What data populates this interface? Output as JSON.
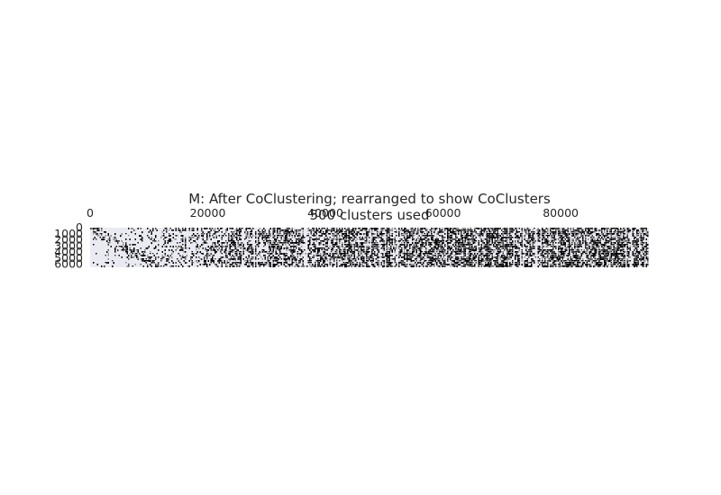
{
  "chart_data": {
    "type": "heatmap",
    "title": "M: After CoClustering; rearranged to show CoClusters",
    "subtitle": "500 clusters used",
    "xlabel": "",
    "ylabel": "",
    "xlim": [
      0,
      95000
    ],
    "ylim": [
      0,
      6500
    ],
    "x_ticks": [
      "0",
      "20000",
      "40000",
      "60000",
      "80000"
    ],
    "x_tick_values": [
      0,
      20000,
      40000,
      60000,
      80000
    ],
    "y_ticks": [
      "0",
      "1000",
      "2000",
      "3000",
      "4000",
      "5000",
      "6000"
    ],
    "y_tick_values": [
      0,
      1000,
      2000,
      3000,
      4000,
      5000,
      6000
    ],
    "x_axis_position": "top",
    "grid": false,
    "colormap": "gray_r",
    "colors": {
      "background": "#eaeaf2",
      "cell": "#000000",
      "text": "#262626"
    },
    "density_profile": {
      "description_units": "fraction of filled cells along x (data units)",
      "x": [
        0,
        3000,
        7000,
        12000,
        18000,
        25000,
        35000,
        45000,
        55000,
        65000,
        75000,
        85000,
        95000
      ],
      "density": [
        0.05,
        0.08,
        0.15,
        0.28,
        0.4,
        0.52,
        0.58,
        0.6,
        0.62,
        0.64,
        0.66,
        0.7,
        0.72
      ]
    }
  }
}
